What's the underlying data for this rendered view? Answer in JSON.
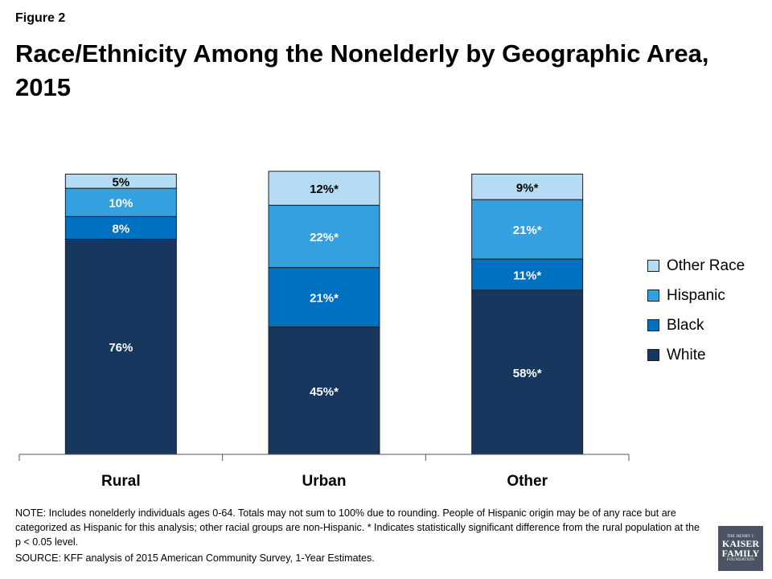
{
  "figure_label": "Figure 2",
  "title": "Race/Ethnicity Among the Nonelderly by Geographic Area, 2015",
  "chart_data": {
    "type": "bar",
    "stacked": true,
    "categories": [
      "Rural",
      "Urban",
      "Other"
    ],
    "series": [
      {
        "name": "White",
        "color": "#17375e",
        "values": [
          76,
          45,
          58
        ],
        "labels": [
          "76%",
          "45%*",
          "58%*"
        ]
      },
      {
        "name": "Black",
        "color": "#0070c0",
        "values": [
          8,
          21,
          11
        ],
        "labels": [
          "8%",
          "21%*",
          "11%*"
        ]
      },
      {
        "name": "Hispanic",
        "color": "#35a0e0",
        "values": [
          10,
          22,
          21
        ],
        "labels": [
          "10%",
          "22%*",
          "21%*"
        ]
      },
      {
        "name": "Other Race",
        "color": "#b5dcf4",
        "values": [
          5,
          12,
          9
        ],
        "labels": [
          "5%",
          "12%*",
          "9%*"
        ]
      }
    ],
    "ylim": [
      0,
      100
    ],
    "grid": false,
    "legend_position": "right"
  },
  "legend_order": [
    "Other Race",
    "Hispanic",
    "Black",
    "White"
  ],
  "note": "NOTE:  Includes nonelderly individuals ages 0-64. Totals may not sum to 100% due to rounding. People of Hispanic origin may be of any race but are categorized as Hispanic for this analysis; other racial groups are non-Hispanic. * Indicates statistically significant difference from the rural population at the p < 0.05 level.",
  "source": "SOURCE: KFF analysis of 2015 American Community Survey, 1-Year Estimates.",
  "logo": {
    "line1": "THE HENRY J.",
    "line2": "KAISER",
    "line3": "FAMILY",
    "line4": "FOUNDATION"
  }
}
